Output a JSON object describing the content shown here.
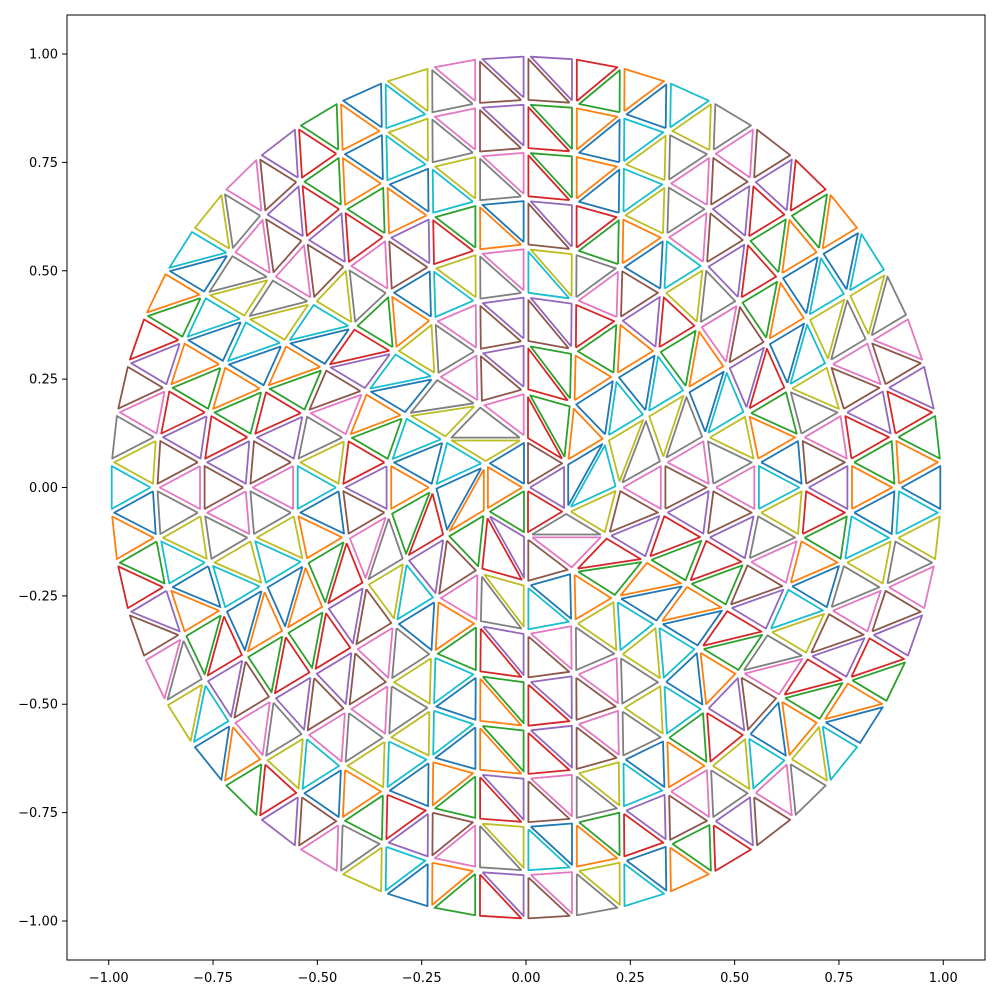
{
  "chart_data": {
    "type": "line",
    "title": "",
    "xlabel": "",
    "ylabel": "",
    "xlim": [
      -1.1,
      1.1
    ],
    "ylim": [
      -1.09,
      1.09
    ],
    "xticks": [
      -1.0,
      -0.75,
      -0.5,
      -0.25,
      0.0,
      0.25,
      0.5,
      0.75,
      1.0
    ],
    "xtick_labels": [
      "−1.00",
      "−0.75",
      "−0.50",
      "−0.25",
      "0.00",
      "0.25",
      "0.50",
      "0.75",
      "1.00"
    ],
    "yticks": [
      1.0,
      0.75,
      0.5,
      0.25,
      0.0,
      -0.25,
      -0.5,
      -0.75,
      -1.0
    ],
    "ytick_labels": [
      "1.00",
      "0.75",
      "0.50",
      "0.25",
      "0.00",
      "−0.25",
      "−0.50",
      "−0.75",
      "−1.00"
    ],
    "grid": false,
    "legend": "none",
    "mesh": {
      "description_of_data": "triangular mesh of the unit disk, each triangle outlined and shrunk toward its centroid",
      "rings": 9,
      "shrink": 0.85,
      "outer_radius": 1.0
    },
    "colors": [
      "#1f77b4",
      "#ff7f0e",
      "#2ca02c",
      "#d62728",
      "#9467bd",
      "#8c564b",
      "#e377c2",
      "#7f7f7f",
      "#bcbd22",
      "#17becf"
    ]
  }
}
